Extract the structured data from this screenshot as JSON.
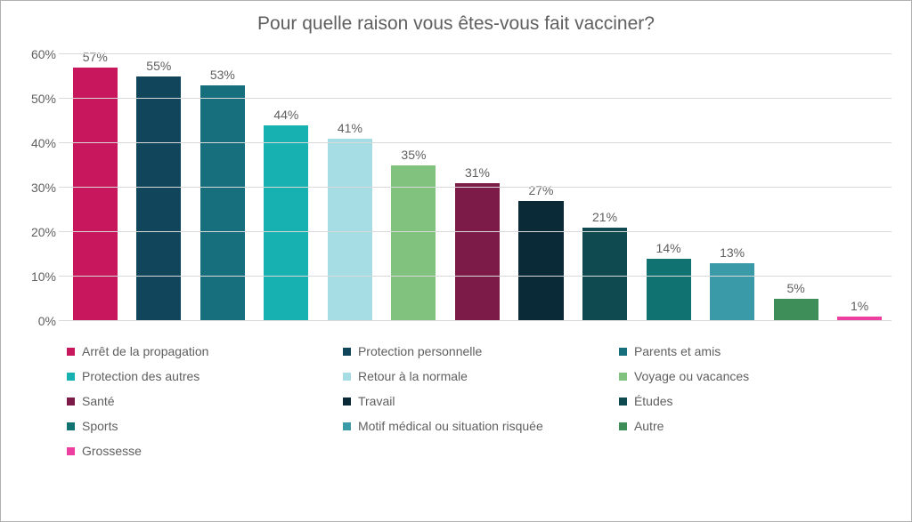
{
  "chart": {
    "type": "bar",
    "title": "Pour quelle raison vous êtes-vous fait vacciner?",
    "title_fontsize": 21,
    "title_color": "#5f5f5f",
    "label_fontsize": 14,
    "label_color": "#5f5f5f",
    "background_color": "#ffffff",
    "border_color": "#b0b0b0",
    "grid_color": "#d9d9d9",
    "ylim": [
      0,
      60
    ],
    "ytick_step": 10,
    "y_ticks": [
      "0%",
      "10%",
      "20%",
      "30%",
      "40%",
      "50%",
      "60%"
    ],
    "bar_width_ratio": 0.7,
    "series": [
      {
        "label": "Arrêt de la propagation",
        "value": 57,
        "value_label": "57%",
        "color": "#c8175d"
      },
      {
        "label": "Protection personnelle",
        "value": 55,
        "value_label": "55%",
        "color": "#10455b"
      },
      {
        "label": "Parents et amis",
        "value": 53,
        "value_label": "53%",
        "color": "#176f7d"
      },
      {
        "label": "Protection des autres",
        "value": 44,
        "value_label": "44%",
        "color": "#17b1b1"
      },
      {
        "label": "Retour à la normale",
        "value": 41,
        "value_label": "41%",
        "color": "#a6dde4"
      },
      {
        "label": "Voyage ou vacances",
        "value": 35,
        "value_label": "35%",
        "color": "#80c27e"
      },
      {
        "label": "Santé",
        "value": 31,
        "value_label": "31%",
        "color": "#7c1b47"
      },
      {
        "label": "Travail",
        "value": 27,
        "value_label": "27%",
        "color": "#0a2a37"
      },
      {
        "label": "Études",
        "value": 21,
        "value_label": "21%",
        "color": "#0e4a4f"
      },
      {
        "label": "Sports",
        "value": 14,
        "value_label": "14%",
        "color": "#117371"
      },
      {
        "label": "Motif médical ou situation risquée",
        "value": 13,
        "value_label": "13%",
        "color": "#3a9aa8"
      },
      {
        "label": "Autre",
        "value": 5,
        "value_label": "5%",
        "color": "#3e8e5a"
      },
      {
        "label": "Grossesse",
        "value": 1,
        "value_label": "1%",
        "color": "#ec3fa0"
      }
    ]
  }
}
